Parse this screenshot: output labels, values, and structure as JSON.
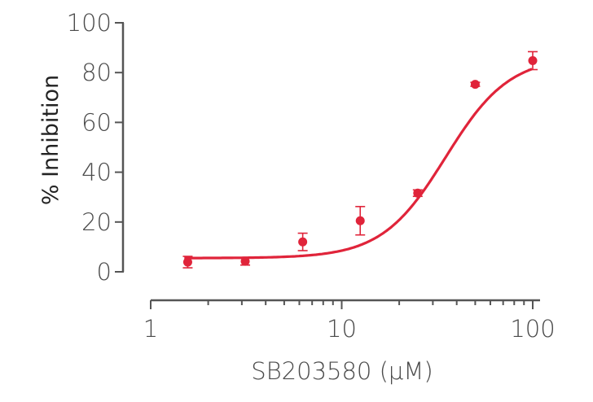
{
  "chart_data": {
    "type": "scatter",
    "title": "",
    "xlabel": "SB203580 (µM)",
    "ylabel": "% Inhibition",
    "xscale": "log",
    "xlim": [
      1,
      120
    ],
    "ylim": [
      0,
      100
    ],
    "xticks": [
      1,
      10,
      100
    ],
    "xtick_labels": [
      "1",
      "10",
      "100"
    ],
    "yticks": [
      0,
      20,
      40,
      60,
      80,
      100
    ],
    "ytick_labels": [
      "0",
      "20",
      "40",
      "60",
      "80",
      "100"
    ],
    "grid": false,
    "legend": null,
    "series": [
      {
        "name": "SB203580",
        "color": "#e0243a",
        "x": [
          1.5625,
          3.125,
          6.25,
          12.5,
          25,
          50,
          100
        ],
        "y": [
          3.9,
          4.2,
          12.0,
          20.5,
          31.6,
          75.3,
          84.8
        ],
        "error": [
          2.3,
          1.5,
          3.5,
          5.7,
          1.3,
          0.8,
          3.6
        ]
      }
    ],
    "fit": {
      "type": "sigmoidal dose-response",
      "color": "#e0243a",
      "bottom": 5.5,
      "top": 86.5,
      "ic50": 35,
      "hill": 2.6
    }
  },
  "colors": {
    "axis": "#555555",
    "text": "#4a4a4a",
    "series": "#e0243a"
  }
}
